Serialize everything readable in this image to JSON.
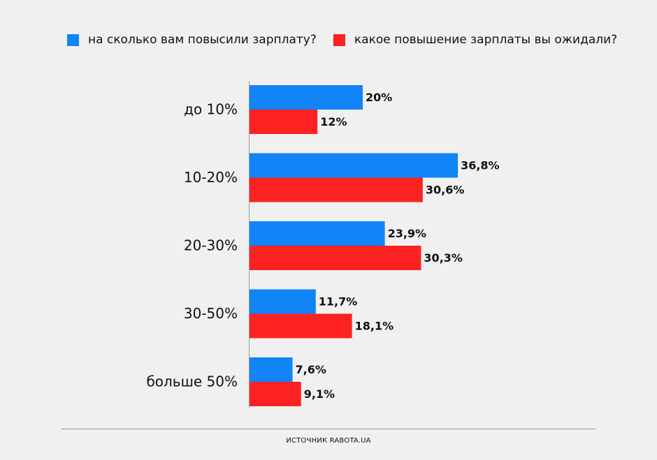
{
  "chart_data": {
    "type": "bar",
    "orientation": "horizontal",
    "categories": [
      "до 10%",
      "10-20%",
      "20-30%",
      "30-50%",
      "больше 50%"
    ],
    "series": [
      {
        "name": "на сколько вам повысили зарплату?",
        "color": "#1184f7",
        "values": [
          20,
          36.8,
          23.9,
          11.7,
          7.6
        ],
        "labels": [
          "20%",
          "36,8%",
          "23,9%",
          "11,7%",
          "7,6%"
        ]
      },
      {
        "name": "какое повышение зарплаты вы ожидали?",
        "color": "#fd2222",
        "values": [
          12,
          30.6,
          30.3,
          18.1,
          9.1
        ],
        "labels": [
          "12%",
          "30,6%",
          "30,3%",
          "18,1%",
          "9,1%"
        ]
      }
    ],
    "xlim": [
      0,
      40
    ],
    "grid": false,
    "legend_position": "top-left"
  },
  "footer": {
    "source": "ИСТОЧНИК RABOTA.UA"
  }
}
